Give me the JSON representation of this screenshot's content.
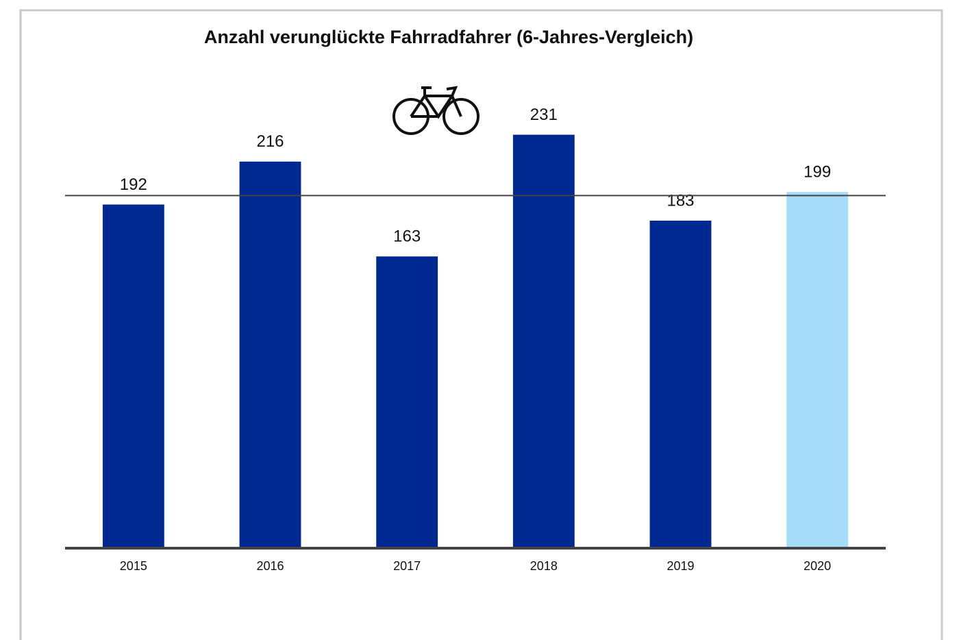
{
  "chart_data": {
    "type": "bar",
    "title": "Anzahl verunglückte Fahrradfahrer (6-Jahres-Vergleich)",
    "categories": [
      "2015",
      "2016",
      "2017",
      "2018",
      "2019",
      "2020"
    ],
    "values": [
      192,
      216,
      163,
      231,
      183,
      199
    ],
    "colors": [
      "#002891",
      "#002891",
      "#002891",
      "#002891",
      "#002891",
      "#a6dcf8"
    ],
    "reference_line": 197,
    "ylim": [
      0,
      250
    ]
  }
}
